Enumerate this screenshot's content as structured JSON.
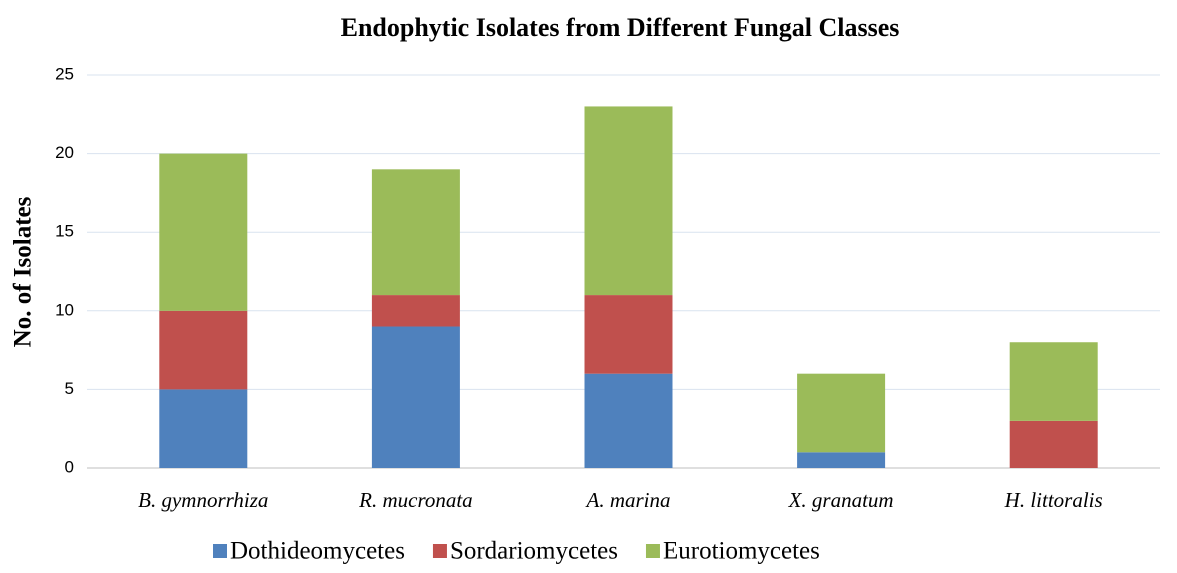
{
  "chart_data": {
    "type": "stacked_bar",
    "title": "Endophytic Isolates from Different Fungal Classes",
    "y_label": "No. of Isolates",
    "categories": [
      "B. gymnorrhiza",
      "R. mucronata",
      "A. marina",
      "X. granatum",
      "H. littoralis"
    ],
    "series": [
      {
        "name": "Dothideomycetes",
        "color": "#4f81bd",
        "values": [
          5,
          9,
          6,
          1,
          0
        ]
      },
      {
        "name": "Sordariomycetes",
        "color": "#c0504d",
        "values": [
          5,
          2,
          5,
          0,
          3
        ]
      },
      {
        "name": "Eurotiomycetes",
        "color": "#9bbb59",
        "values": [
          10,
          8,
          12,
          5,
          5
        ]
      }
    ],
    "ylim": [
      0,
      25
    ],
    "yticks": [
      0,
      5,
      10,
      15,
      20,
      25
    ],
    "grid": true,
    "legend": "bottom"
  }
}
